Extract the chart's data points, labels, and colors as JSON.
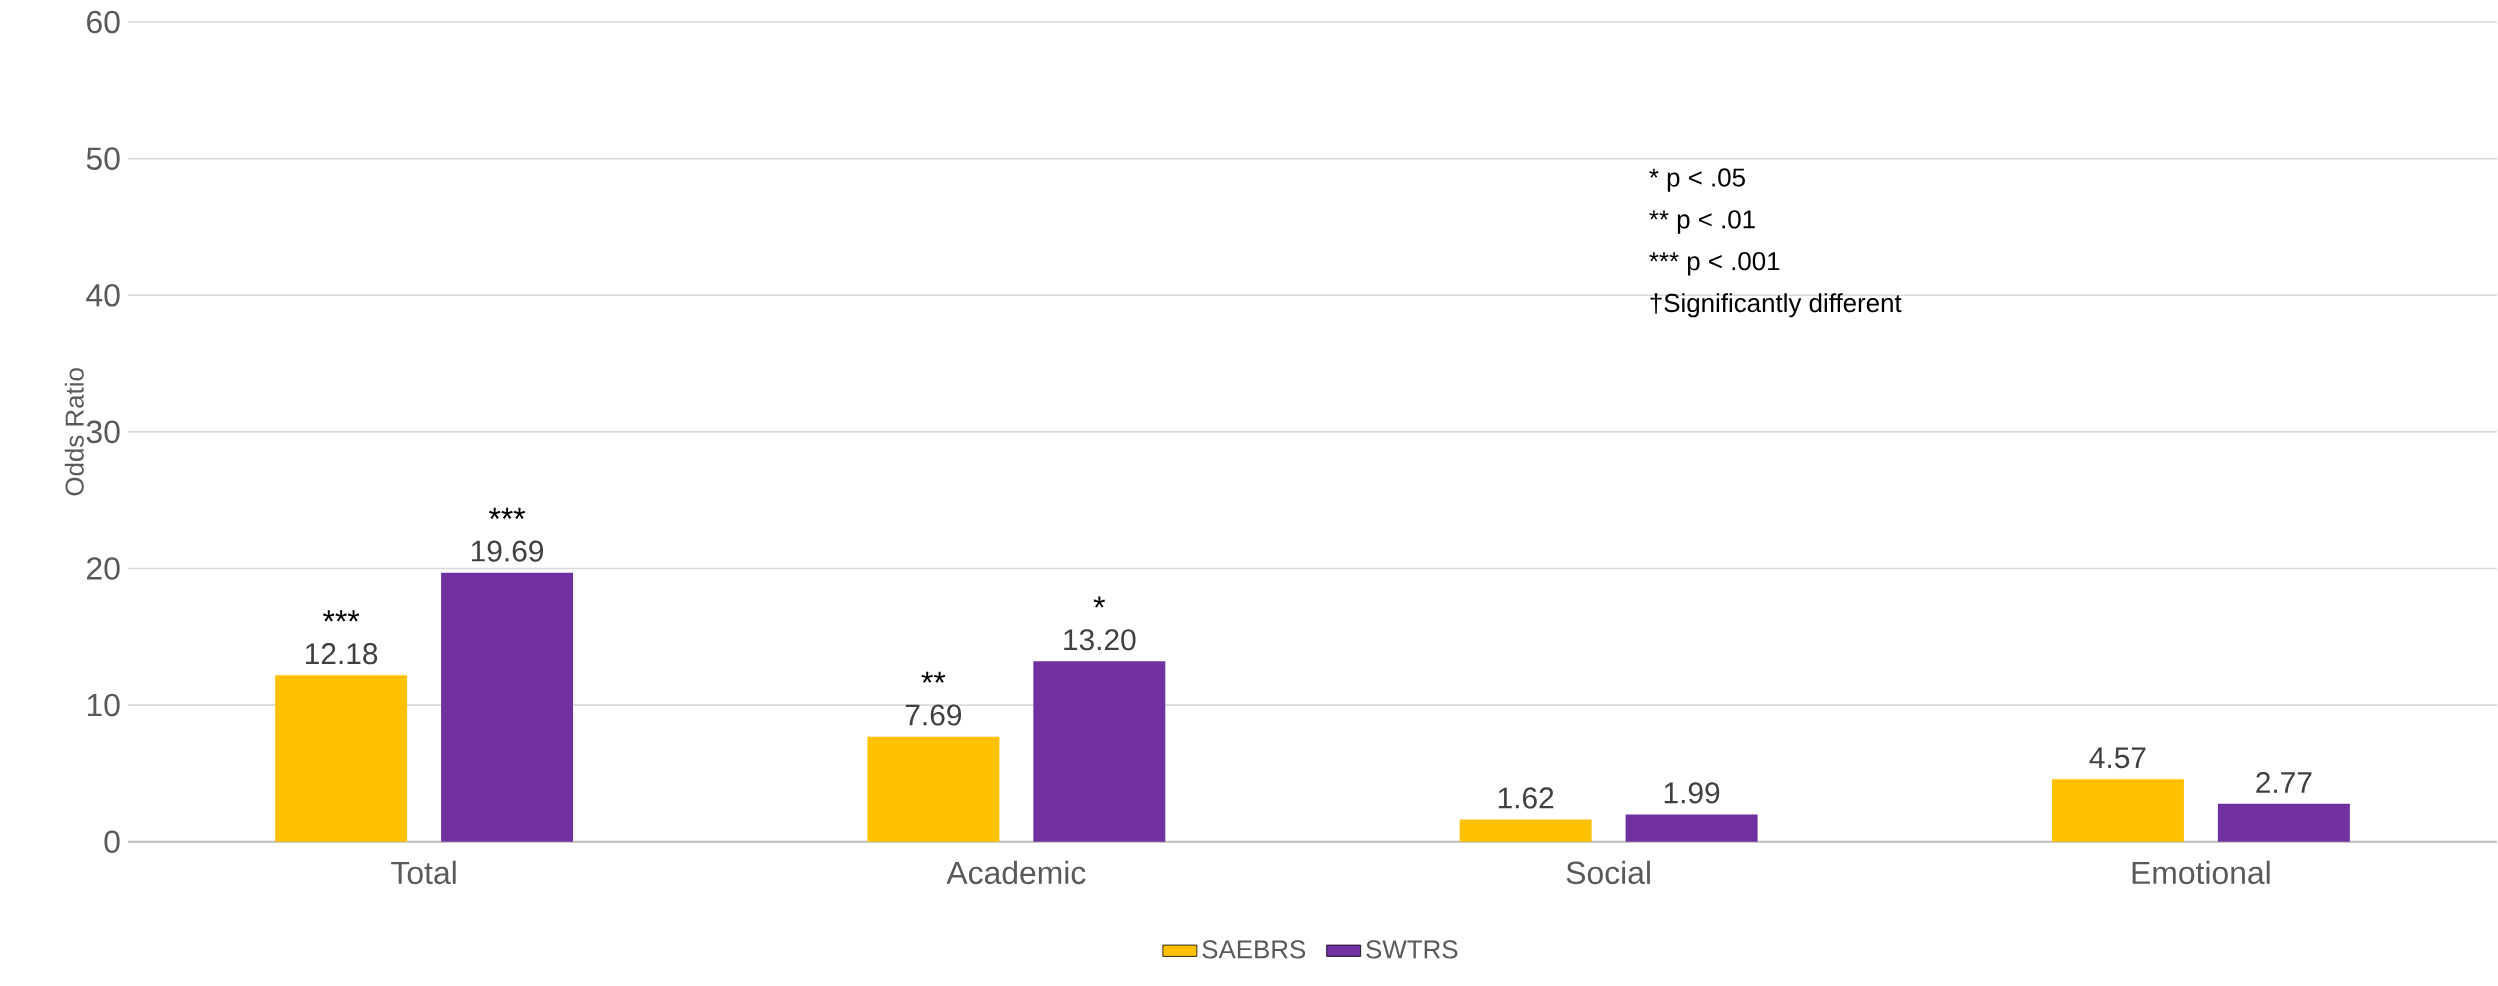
{
  "chart_data": {
    "type": "bar",
    "ylabel": "Odds Ratio",
    "categories": [
      "Total",
      "Academic",
      "Social",
      "Emotional"
    ],
    "series": [
      {
        "name": "SAEBRS",
        "color": "#ffc000",
        "values": [
          12.18,
          7.69,
          1.62,
          4.57
        ],
        "value_labels": [
          "12.18",
          "7.69",
          "1.62",
          "4.57"
        ]
      },
      {
        "name": "SWTRS",
        "color": "#7030a0",
        "values": [
          19.69,
          13.2,
          1.99,
          2.77
        ],
        "value_labels": [
          "19.69",
          "13.20",
          "1.99",
          "2.77"
        ]
      }
    ],
    "ylim": [
      0,
      60
    ],
    "yticks": [
      0,
      10,
      20,
      30,
      40,
      50,
      60
    ],
    "grid": "y",
    "legend": "bottom",
    "annotations": [
      "***",
      "***",
      "**",
      "*",
      "*    p < .05",
      "**   p < .01",
      "*** p < .001",
      "†Significantly different"
    ]
  }
}
